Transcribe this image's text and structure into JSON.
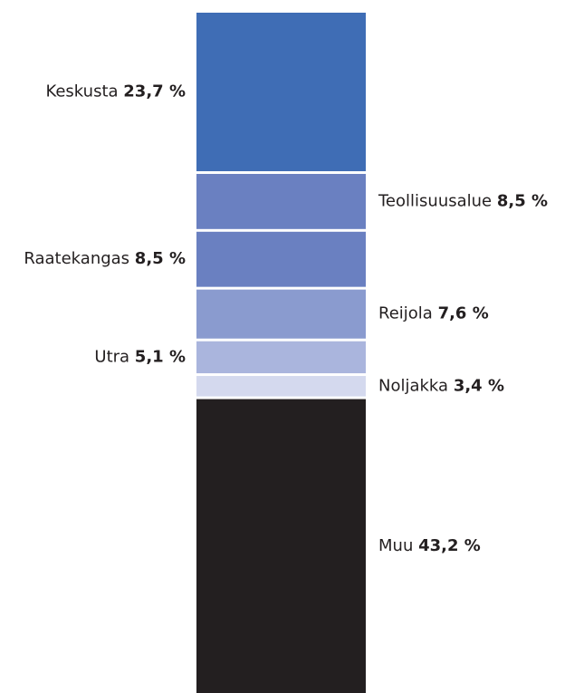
{
  "chart_data": {
    "type": "bar",
    "categories": [
      "Keskusta",
      "Teollisuusalue",
      "Raatekangas",
      "Reijola",
      "Utra",
      "Noljakka",
      "Muu"
    ],
    "values": [
      23.7,
      8.5,
      8.5,
      7.6,
      5.1,
      3.4,
      43.2
    ],
    "value_labels": [
      "23,7 %",
      "8,5 %",
      "8,5 %",
      "7,6 %",
      "5,1 %",
      "3,4 %",
      "43,2 %"
    ],
    "colors": [
      "#3f6db5",
      "#6a80c1",
      "#6a80c1",
      "#8a9bcf",
      "#aab5dd",
      "#d4d9ee",
      "#231f20"
    ]
  }
}
